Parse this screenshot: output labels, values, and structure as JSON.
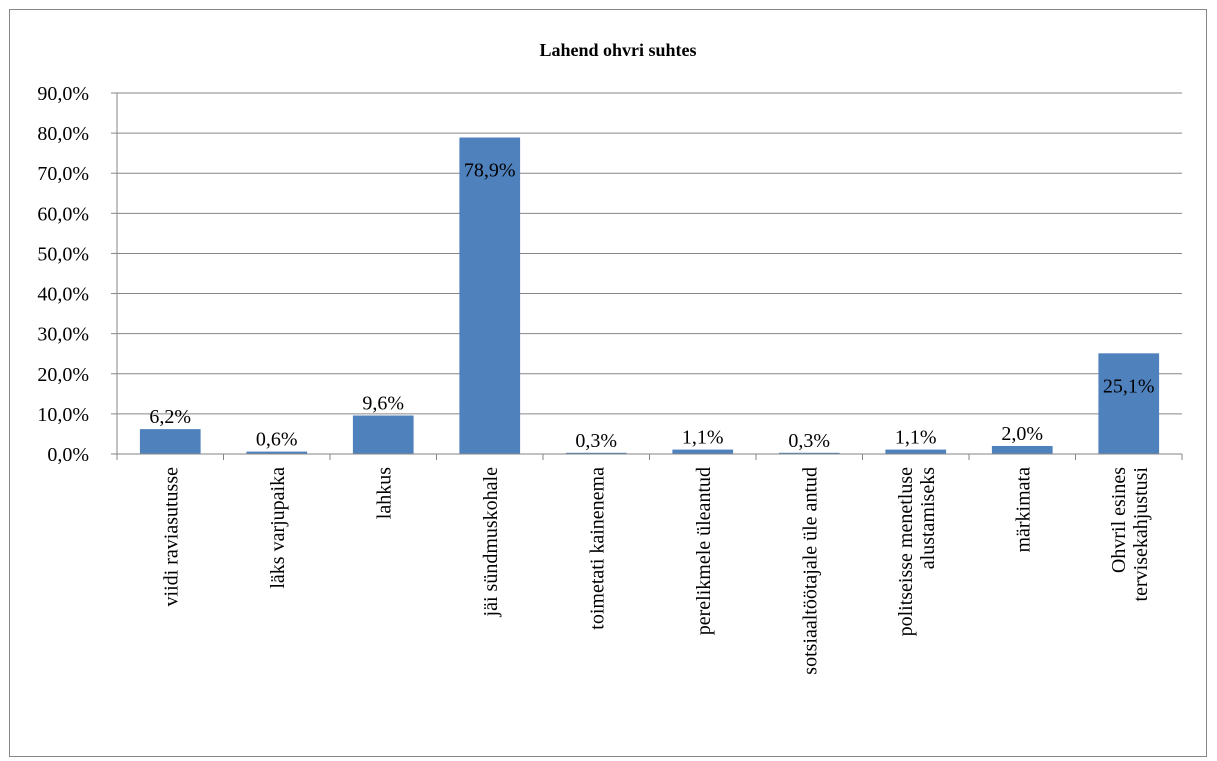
{
  "chart_data": {
    "type": "bar",
    "title": "Lahend ohvri suhtes",
    "xlabel": "",
    "ylabel": "",
    "ylim": [
      0,
      90
    ],
    "y_ticks": [
      "0,0%",
      "10,0%",
      "20,0%",
      "30,0%",
      "40,0%",
      "50,0%",
      "60,0%",
      "70,0%",
      "80,0%",
      "90,0%"
    ],
    "grid": true,
    "legend": "none",
    "bar_color": "#4F81BD",
    "categories": [
      [
        "viidi raviasutusse"
      ],
      [
        "läks varjupaika"
      ],
      [
        "lahkus"
      ],
      [
        "jäi sündmuskohale"
      ],
      [
        "toimetati kainenema"
      ],
      [
        "perelikmele üleantud"
      ],
      [
        "sotsiaaltöötajale üle antud"
      ],
      [
        "politseisse menetluse",
        "alustamiseks"
      ],
      [
        "märkimata"
      ],
      [
        "Ohvril esines",
        "tervisekahjustusi"
      ]
    ],
    "values": [
      6.2,
      0.6,
      9.6,
      78.9,
      0.3,
      1.1,
      0.3,
      1.1,
      2.0,
      25.1
    ],
    "data_labels": [
      "6,2%",
      "0,6%",
      "9,6%",
      "78,9%",
      "0,3%",
      "1,1%",
      "0,3%",
      "1,1%",
      "2,0%",
      "25,1%"
    ]
  }
}
